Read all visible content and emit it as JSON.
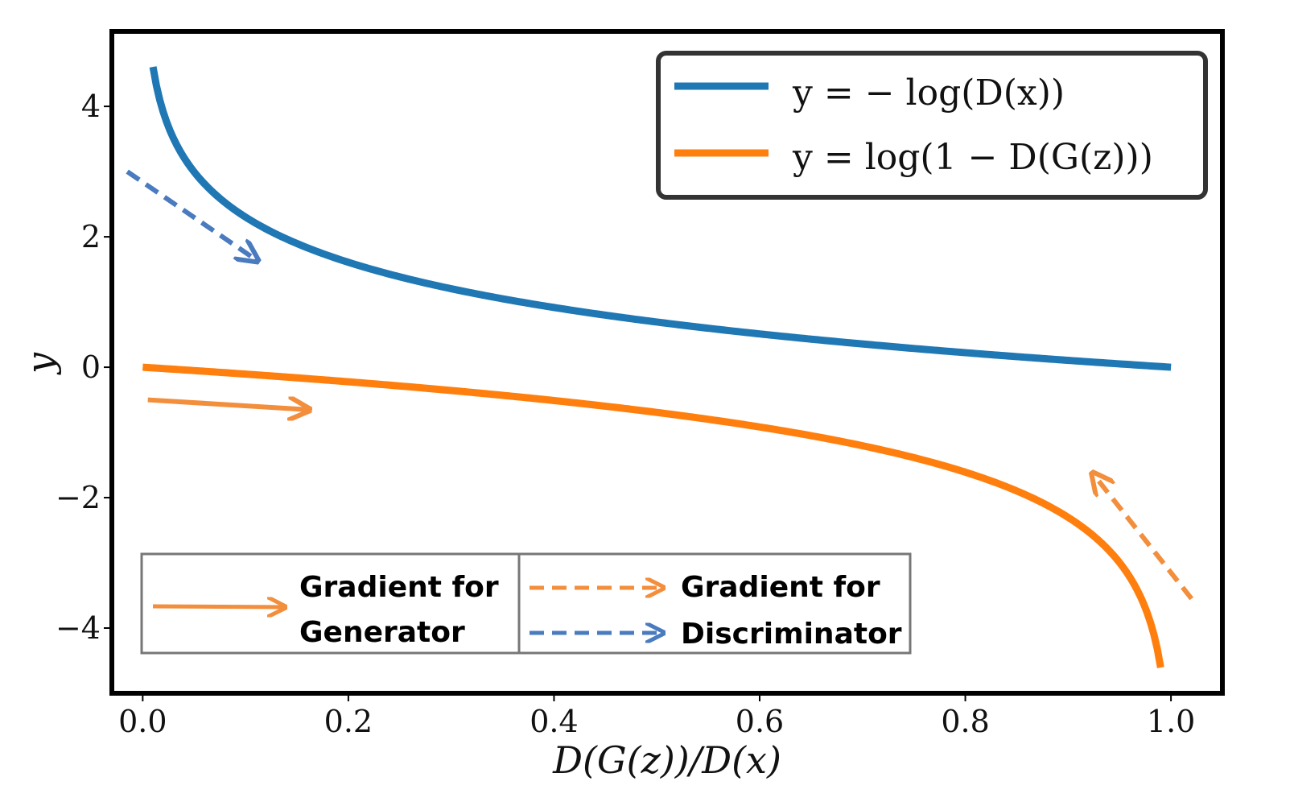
{
  "chart_data": {
    "type": "line",
    "title": "",
    "xlabel": "D(G(z))/D(x)",
    "ylabel": "y",
    "xlim": [
      -0.03,
      1.05
    ],
    "ylim": [
      -5.0,
      5.15
    ],
    "x_ticks": [
      0.0,
      0.2,
      0.4,
      0.6,
      0.8,
      1.0
    ],
    "x_tick_labels": [
      "0.0",
      "0.2",
      "0.4",
      "0.6",
      "0.8",
      "1.0"
    ],
    "y_ticks": [
      4,
      2,
      0,
      -2,
      -4
    ],
    "y_tick_labels": [
      "4",
      "2",
      "0",
      "−2",
      "−4"
    ],
    "grid": false,
    "legend_position": "top-right",
    "series": [
      {
        "name": "y = − log(D(x))",
        "function": "-ln(x)",
        "x_range": [
          0.01,
          1.0
        ],
        "color": "#1f77b4"
      },
      {
        "name": "y = log(1 − D(G(z)))",
        "function": "ln(1-x)",
        "x_range": [
          0.0,
          0.99
        ],
        "color": "#ff7f0e"
      }
    ],
    "annotation_legend": {
      "generator": {
        "line1": "Gradient for",
        "line2": "Generator",
        "style": "solid",
        "color": "#f28e3c"
      },
      "discriminator": {
        "line1": "Gradient for",
        "line2": "Discriminator",
        "styles": [
          "dashed",
          "dashed"
        ],
        "colors": [
          "#f28e3c",
          "#4a7bbf"
        ]
      }
    },
    "arrows": [
      {
        "name": "discriminator-arrow-top",
        "style": "dashed",
        "color": "#4a7bbf",
        "from": [
          -0.015,
          3.0
        ],
        "to": [
          0.11,
          1.65
        ]
      },
      {
        "name": "generator-arrow",
        "style": "solid",
        "color": "#f28e3c",
        "from": [
          0.005,
          -0.5
        ],
        "to": [
          0.16,
          -0.65
        ]
      },
      {
        "name": "discriminator-arrow-right",
        "style": "dashed",
        "color": "#f28e3c",
        "from": [
          1.02,
          -3.55
        ],
        "to": [
          0.925,
          -1.65
        ]
      }
    ]
  }
}
